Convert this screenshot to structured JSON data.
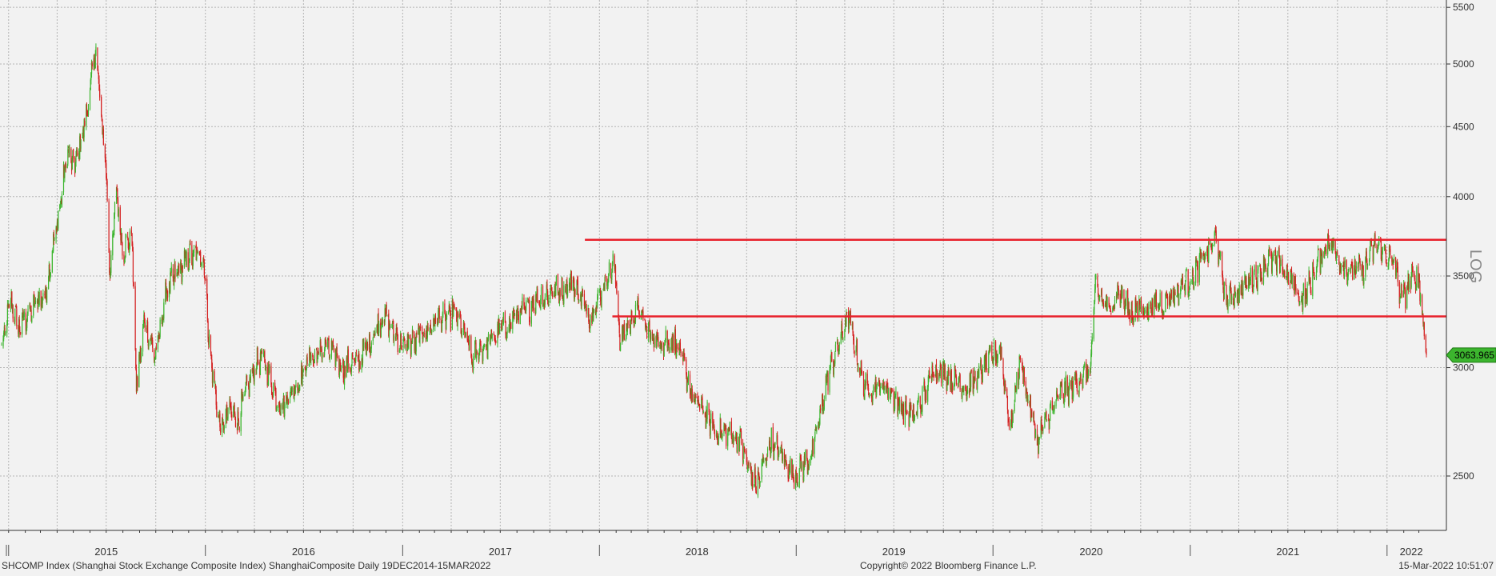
{
  "chart_data": {
    "type": "candlestick",
    "title": "",
    "scale": "log",
    "ylim": [
      2200,
      5500
    ],
    "y_ticks": [
      2500,
      3000,
      3500,
      4000,
      4500,
      5000,
      5500
    ],
    "y_tick_labels": [
      "2500",
      "3000",
      "3500",
      "4000",
      "4500",
      "5000",
      "5500"
    ],
    "y_axis_side": "right",
    "scale_label": "LOG",
    "x_range": [
      "2014-12-19",
      "2022-03-15"
    ],
    "x_tick_labels": [
      {
        "date": "2015-07-01",
        "label": "2015"
      },
      {
        "date": "2016-07-01",
        "label": "2016"
      },
      {
        "date": "2017-07-01",
        "label": "2017"
      },
      {
        "date": "2018-07-01",
        "label": "2018"
      },
      {
        "date": "2019-07-01",
        "label": "2019"
      },
      {
        "date": "2020-07-01",
        "label": "2020"
      },
      {
        "date": "2021-07-01",
        "label": "2021"
      },
      {
        "date": "2022-02-15",
        "label": "2022"
      }
    ],
    "x_separators": [
      "2015-01-01",
      "2016-01-01",
      "2017-01-01",
      "2018-01-01",
      "2019-01-01",
      "2020-01-01",
      "2021-01-01",
      "2022-01-01"
    ],
    "grid": true,
    "up_color": "#3cb52e",
    "down_color": "#d42020",
    "last_value": 3063.965,
    "last_value_label": "3063.965",
    "last_value_color": "#3cb52e",
    "series_anchors": [
      [
        "2014-12-19",
        3100
      ],
      [
        "2015-01-05",
        3350
      ],
      [
        "2015-01-20",
        3200
      ],
      [
        "2015-02-10",
        3300
      ],
      [
        "2015-03-10",
        3400
      ],
      [
        "2015-03-31",
        3800
      ],
      [
        "2015-04-20",
        4300
      ],
      [
        "2015-05-05",
        4200
      ],
      [
        "2015-05-15",
        4400
      ],
      [
        "2015-05-28",
        4650
      ],
      [
        "2015-06-12",
        5170
      ],
      [
        "2015-06-20",
        4600
      ],
      [
        "2015-06-30",
        4250
      ],
      [
        "2015-07-08",
        3500
      ],
      [
        "2015-07-20",
        4050
      ],
      [
        "2015-07-31",
        3650
      ],
      [
        "2015-08-18",
        3750
      ],
      [
        "2015-08-26",
        2900
      ],
      [
        "2015-09-10",
        3250
      ],
      [
        "2015-09-30",
        3050
      ],
      [
        "2015-10-20",
        3400
      ],
      [
        "2015-11-05",
        3500
      ],
      [
        "2015-11-27",
        3600
      ],
      [
        "2015-12-23",
        3650
      ],
      [
        "2015-12-31",
        3530
      ],
      [
        "2016-01-07",
        3150
      ],
      [
        "2016-01-28",
        2700
      ],
      [
        "2016-02-15",
        2800
      ],
      [
        "2016-03-01",
        2750
      ],
      [
        "2016-03-31",
        3000
      ],
      [
        "2016-04-15",
        3050
      ],
      [
        "2016-05-20",
        2800
      ],
      [
        "2016-06-15",
        2900
      ],
      [
        "2016-07-15",
        3050
      ],
      [
        "2016-08-15",
        3100
      ],
      [
        "2016-09-15",
        3000
      ],
      [
        "2016-10-15",
        3050
      ],
      [
        "2016-11-29",
        3280
      ],
      [
        "2016-12-31",
        3100
      ],
      [
        "2017-01-31",
        3150
      ],
      [
        "2017-02-28",
        3240
      ],
      [
        "2017-04-10",
        3290
      ],
      [
        "2017-05-10",
        3050
      ],
      [
        "2017-06-15",
        3150
      ],
      [
        "2017-07-31",
        3270
      ],
      [
        "2017-09-15",
        3380
      ],
      [
        "2017-11-13",
        3450
      ],
      [
        "2017-12-15",
        3280
      ],
      [
        "2018-01-29",
        3580
      ],
      [
        "2018-02-09",
        3130
      ],
      [
        "2018-03-12",
        3320
      ],
      [
        "2018-04-15",
        3120
      ],
      [
        "2018-05-20",
        3150
      ],
      [
        "2018-06-25",
        2850
      ],
      [
        "2018-08-06",
        2700
      ],
      [
        "2018-09-15",
        2670
      ],
      [
        "2018-10-19",
        2450
      ],
      [
        "2018-11-15",
        2650
      ],
      [
        "2018-12-31",
        2500
      ],
      [
        "2019-01-31",
        2600
      ],
      [
        "2019-02-28",
        2950
      ],
      [
        "2019-04-08",
        3280
      ],
      [
        "2019-05-06",
        2900
      ],
      [
        "2019-06-15",
        2900
      ],
      [
        "2019-08-06",
        2750
      ],
      [
        "2019-09-15",
        3000
      ],
      [
        "2019-10-15",
        2950
      ],
      [
        "2019-11-15",
        2900
      ],
      [
        "2019-12-31",
        3050
      ],
      [
        "2020-01-14",
        3100
      ],
      [
        "2020-02-03",
        2700
      ],
      [
        "2020-02-20",
        3050
      ],
      [
        "2020-03-23",
        2650
      ],
      [
        "2020-04-30",
        2850
      ],
      [
        "2020-06-15",
        2950
      ],
      [
        "2020-06-30",
        3000
      ],
      [
        "2020-07-09",
        3450
      ],
      [
        "2020-07-31",
        3300
      ],
      [
        "2020-08-20",
        3400
      ],
      [
        "2020-09-15",
        3300
      ],
      [
        "2020-10-15",
        3320
      ],
      [
        "2020-11-15",
        3350
      ],
      [
        "2020-12-31",
        3480
      ],
      [
        "2021-02-18",
        3730
      ],
      [
        "2021-03-09",
        3360
      ],
      [
        "2021-04-15",
        3450
      ],
      [
        "2021-05-31",
        3600
      ],
      [
        "2021-06-15",
        3580
      ],
      [
        "2021-07-28",
        3360
      ],
      [
        "2021-09-13",
        3720
      ],
      [
        "2021-10-15",
        3550
      ],
      [
        "2021-11-15",
        3530
      ],
      [
        "2021-12-13",
        3700
      ],
      [
        "2022-01-15",
        3560
      ],
      [
        "2022-01-28",
        3360
      ],
      [
        "2022-02-15",
        3480
      ],
      [
        "2022-03-01",
        3470
      ],
      [
        "2022-03-09",
        3250
      ],
      [
        "2022-03-15",
        3063.965
      ]
    ],
    "horizontal_lines": [
      {
        "value": 3720,
        "from": "2017-12-05",
        "to": "2022-03-15",
        "color": "#e8202a"
      },
      {
        "value": 3270,
        "from": "2018-01-25",
        "to": "2022-03-15",
        "color": "#e8202a"
      }
    ]
  },
  "footer": {
    "left": "SHCOMP Index (Shanghai Stock Exchange Composite Index) ShanghaiComposite  Daily 19DEC2014-15MAR2022",
    "center": "Copyright© 2022 Bloomberg Finance L.P.",
    "right": "15-Mar-2022 10:51:07"
  }
}
